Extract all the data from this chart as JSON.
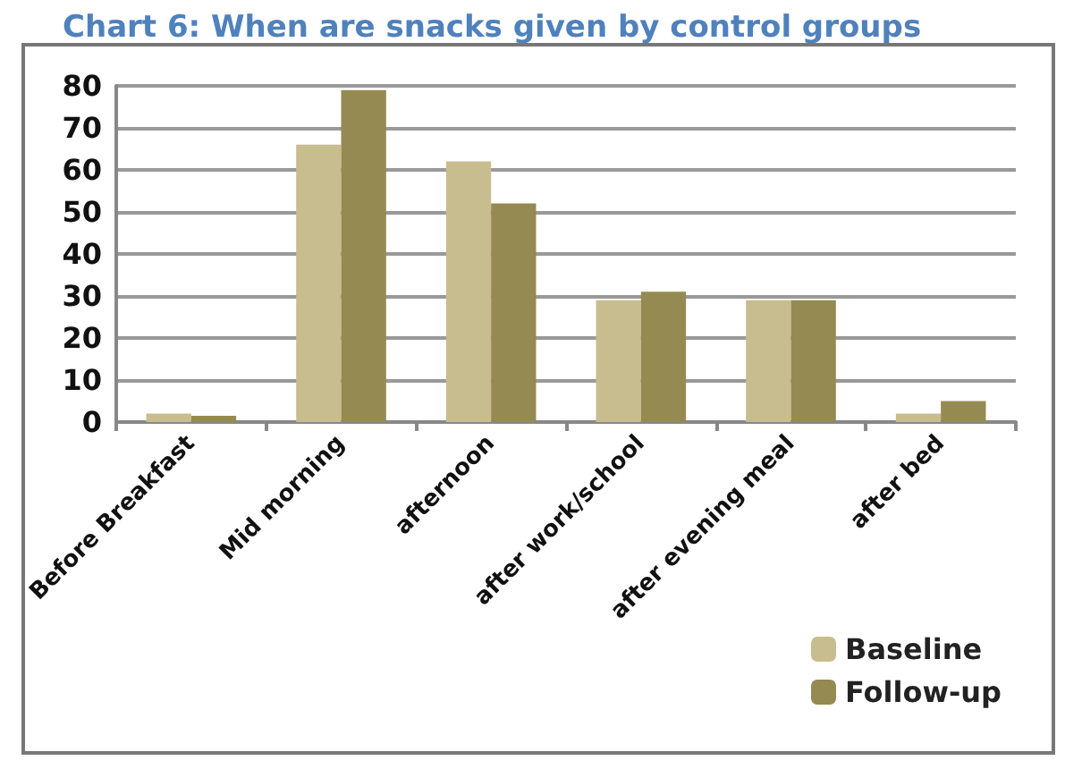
{
  "chart_data": {
    "type": "bar",
    "title": "Chart 6: When are snacks given by control groups",
    "categories": [
      "Before Breakfast",
      "Mid morning",
      "afternoon",
      "after work/school",
      "after evening meal",
      "after bed"
    ],
    "series": [
      {
        "name": "Baseline",
        "color": "#c8bd8f",
        "values": [
          2,
          66,
          62,
          29,
          29,
          2
        ]
      },
      {
        "name": "Follow-up",
        "color": "#958a52",
        "values": [
          1.5,
          79,
          52,
          31,
          29,
          5
        ]
      }
    ],
    "ylim": [
      0,
      80
    ],
    "yticks": [
      0,
      10,
      20,
      30,
      40,
      50,
      60,
      70,
      80
    ],
    "grid": "y",
    "legend": "bottom right"
  }
}
